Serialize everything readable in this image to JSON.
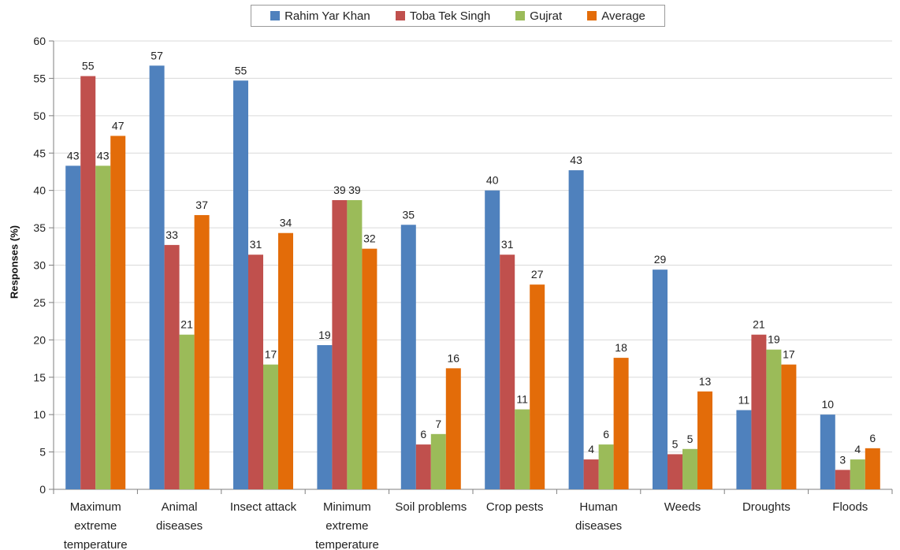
{
  "chart_data": {
    "type": "bar",
    "title": "",
    "xlabel": "",
    "ylabel": "Responses (%)",
    "ylim": [
      0,
      60
    ],
    "yticks": [
      0,
      5,
      10,
      15,
      20,
      25,
      30,
      35,
      40,
      45,
      50,
      55,
      60
    ],
    "grid": true,
    "legend_position": "top",
    "categories": [
      [
        "Maximum",
        "extreme",
        "temperature"
      ],
      [
        "Animal",
        "diseases"
      ],
      [
        "Insect attack"
      ],
      [
        "Minimum",
        "extreme",
        "temperature"
      ],
      [
        "Soil problems"
      ],
      [
        "Crop pests"
      ],
      [
        "Human",
        "diseases"
      ],
      [
        "Weeds"
      ],
      [
        "Droughts"
      ],
      [
        "Floods"
      ]
    ],
    "series": [
      {
        "name": "Rahim Yar Khan",
        "color": "#4f81bd",
        "values": [
          43.3,
          56.7,
          54.7,
          19.3,
          35.4,
          40.0,
          42.7,
          29.4,
          10.6,
          10.0
        ],
        "labels": [
          "43",
          "57",
          "55",
          "19",
          "35",
          "40",
          "43",
          "29",
          "11",
          "10"
        ]
      },
      {
        "name": "Toba Tek Singh",
        "color": "#c0504d",
        "values": [
          55.3,
          32.7,
          31.4,
          38.7,
          6.0,
          31.4,
          4.0,
          4.7,
          20.7,
          2.6
        ],
        "labels": [
          "55",
          "33",
          "31",
          "39",
          "6",
          "31",
          "4",
          "5",
          "21",
          "3"
        ]
      },
      {
        "name": "Gujrat",
        "color": "#9bbb59",
        "values": [
          43.3,
          20.7,
          16.7,
          38.7,
          7.4,
          10.7,
          6.0,
          5.4,
          18.7,
          4.0
        ],
        "labels": [
          "43",
          "21",
          "17",
          "39",
          "7",
          "11",
          "6",
          "5",
          "19",
          "4"
        ]
      },
      {
        "name": "Average",
        "color": "#e36c09",
        "values": [
          47.3,
          36.7,
          34.3,
          32.2,
          16.2,
          27.4,
          17.6,
          13.1,
          16.7,
          5.5
        ],
        "labels": [
          "47",
          "37",
          "34",
          "32",
          "16",
          "27",
          "18",
          "13",
          "17",
          "6"
        ]
      }
    ]
  }
}
